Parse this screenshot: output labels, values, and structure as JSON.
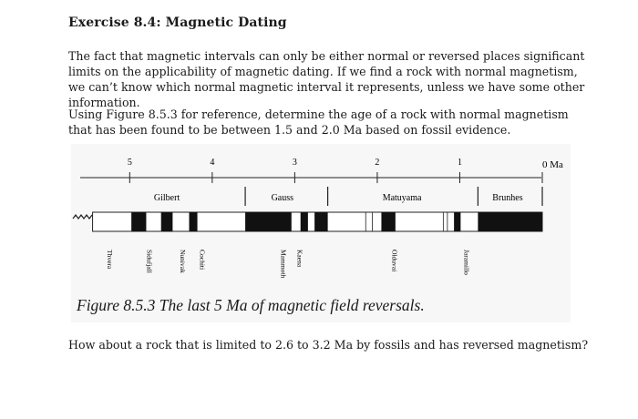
{
  "exercise": {
    "heading": "Exercise 8.4: Magnetic Dating",
    "paragraph1": "The fact that magnetic intervals can only be either normal or reversed places significant limits on the applicability of magnetic dating. If we find a rock with normal magnetism, we can’t know which normal magnetic interval it represents, unless we have some other information.",
    "paragraph2": "Using Figure 8.5.3 for reference, determine the age of a rock with normal magnetism that has been found to be between 1.5 and 2.0 Ma based on fossil evidence.",
    "question2": "How about a rock that is limited to 2.6 to 3.2 Ma by fossils and has reversed magnetism?"
  },
  "figure": {
    "caption": "Figure 8.5.3 The last 5 Ma of magnetic field reversals.",
    "axis_unit": "0 Ma",
    "axis_ticks": [
      "5",
      "4",
      "3",
      "2",
      "1"
    ],
    "chrons": [
      "Gilbert",
      "Gauss",
      "Matuyama",
      "Brunhes"
    ],
    "subchrons": [
      "Thvera",
      "Sidufjall",
      "Nunivak",
      "Cochiti",
      "Mammoth",
      "Kaena",
      "Olduvai",
      "Jaramillo"
    ],
    "normal_polarity_intervals_ma": [
      [
        4.98,
        4.8
      ],
      [
        4.62,
        4.48
      ],
      [
        4.28,
        4.18
      ],
      [
        3.6,
        3.04
      ],
      [
        2.93,
        2.84
      ],
      [
        2.76,
        2.6
      ],
      [
        1.95,
        1.78
      ],
      [
        1.07,
        0.99
      ],
      [
        0.78,
        0.0
      ]
    ],
    "axis_range_ma": [
      5.6,
      0
    ],
    "colors": {
      "normal": "#111111",
      "reversed": "#ffffff",
      "background": "#f7f7f7"
    }
  }
}
